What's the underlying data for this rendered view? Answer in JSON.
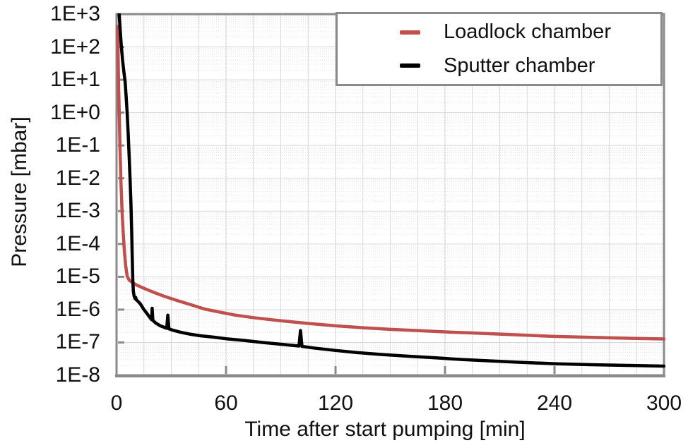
{
  "chart_data": {
    "type": "line",
    "title": "",
    "xlabel": "Time after start pumping [min]",
    "ylabel": "Pressure [mbar]",
    "x_axis": {
      "min": 0,
      "max": 300,
      "ticks": [
        0,
        60,
        120,
        180,
        240,
        300
      ],
      "minor_grid_step_min": 15,
      "dashed_grid_at": [
        60,
        120,
        180,
        240
      ]
    },
    "y_axis": {
      "scale": "log",
      "min": 1e-08,
      "max": 1000.0,
      "tick_labels": [
        "1E+3",
        "1E+2",
        "1E+1",
        "1E+0",
        "1E-1",
        "1E-2",
        "1E-3",
        "1E-4",
        "1E-5",
        "1E-6",
        "1E-7",
        "1E-8"
      ],
      "tick_exponents": [
        3,
        2,
        1,
        0,
        -1,
        -2,
        -3,
        -4,
        -5,
        -6,
        -7,
        -8
      ],
      "minor_gridlines": "log-subdecades-dotted"
    },
    "grid": {
      "major_color": "#d9d9d9",
      "minor_color": "#e4e4e4",
      "dashed_color": "#c4c4c4"
    },
    "axis_color": "#8a8a8a",
    "legend": {
      "position": "top-right",
      "entries": [
        {
          "label": "Loadlock chamber",
          "color": "#c0504d"
        },
        {
          "label": "Sputter chamber",
          "color": "#000000"
        }
      ]
    },
    "series": [
      {
        "name": "Loadlock chamber",
        "color": "#c0504d",
        "points": [
          [
            0.55,
            420.0
          ],
          [
            0.8,
            80.0
          ],
          [
            1.1,
            8.0
          ],
          [
            1.5,
            0.8
          ],
          [
            1.9,
            0.08
          ],
          [
            2.4,
            0.008
          ],
          [
            3.0,
            0.001
          ],
          [
            3.6,
            0.00025
          ],
          [
            4.3,
            6e-05
          ],
          [
            5.0,
            2.2e-05
          ],
          [
            5.8,
            1.05e-05
          ],
          [
            7,
            7.8e-06
          ],
          [
            9,
            6.5e-06
          ],
          [
            11,
            5.6e-06
          ],
          [
            14,
            4.7e-06
          ],
          [
            18,
            3.8e-06
          ],
          [
            22,
            3.1e-06
          ],
          [
            27,
            2.45e-06
          ],
          [
            33,
            1.9e-06
          ],
          [
            40,
            1.45e-06
          ],
          [
            48,
            1.05e-06
          ],
          [
            56,
            8.5e-07
          ],
          [
            65,
            6.8e-07
          ],
          [
            75,
            5.7e-07
          ],
          [
            85,
            4.9e-07
          ],
          [
            95,
            4.3e-07
          ],
          [
            105,
            3.8e-07
          ],
          [
            120,
            3.2e-07
          ],
          [
            135,
            2.8e-07
          ],
          [
            150,
            2.5e-07
          ],
          [
            165,
            2.3e-07
          ],
          [
            180,
            2.1e-07
          ],
          [
            195,
            1.95e-07
          ],
          [
            210,
            1.8e-07
          ],
          [
            225,
            1.65e-07
          ],
          [
            240,
            1.53e-07
          ],
          [
            255,
            1.45e-07
          ],
          [
            270,
            1.38e-07
          ],
          [
            285,
            1.32e-07
          ],
          [
            300,
            1.28e-07
          ]
        ]
      },
      {
        "name": "Sputter chamber",
        "color": "#000000",
        "points": [
          [
            1.35,
            1150.0
          ],
          [
            2.0,
            320.0
          ],
          [
            2.6,
            110.0
          ],
          [
            3.3,
            40.0
          ],
          [
            4.0,
            18.0
          ],
          [
            4.7,
            9.0
          ],
          [
            5.2,
            3.5
          ],
          [
            5.8,
            1.0
          ],
          [
            6.4,
            0.22
          ],
          [
            6.9,
            0.05
          ],
          [
            7.4,
            0.01
          ],
          [
            7.9,
            0.0016
          ],
          [
            8.3,
            0.00025
          ],
          [
            8.6,
            4e-05
          ],
          [
            8.9,
            8e-06
          ],
          [
            9.2,
            3.6e-06
          ],
          [
            9.6,
            2.6e-06
          ],
          [
            10.2,
            2.15e-06
          ],
          [
            10.5,
            2.35e-06
          ],
          [
            10.8,
            2e-06
          ],
          [
            11.5,
            1.85e-06
          ],
          [
            13,
            1.5e-06
          ],
          [
            15,
            1e-06
          ],
          [
            16.5,
            7.8e-07
          ],
          [
            18,
            6e-07
          ],
          [
            19.2,
            4.9e-07
          ],
          [
            19.5,
            1.1e-06
          ],
          [
            19.9,
            4.7e-07
          ],
          [
            21.5,
            3.9e-07
          ],
          [
            24,
            3.2e-07
          ],
          [
            27.5,
            2.7e-07
          ],
          [
            28.1,
            6.8e-07
          ],
          [
            28.7,
            2.6e-07
          ],
          [
            31,
            2.35e-07
          ],
          [
            35,
            2.05e-07
          ],
          [
            40,
            1.8e-07
          ],
          [
            46,
            1.6e-07
          ],
          [
            53,
            1.45e-07
          ],
          [
            60,
            1.3e-07
          ],
          [
            70,
            1.15e-07
          ],
          [
            80,
            1e-07
          ],
          [
            90,
            8.8e-08
          ],
          [
            100,
            7.8e-08
          ],
          [
            100.8,
            2.3e-07
          ],
          [
            101.6,
            7.6e-08
          ],
          [
            108,
            6.8e-08
          ],
          [
            120,
            5.7e-08
          ],
          [
            132,
            4.9e-08
          ],
          [
            145,
            4.3e-08
          ],
          [
            160,
            3.8e-08
          ],
          [
            175,
            3.4e-08
          ],
          [
            190,
            3e-08
          ],
          [
            205,
            2.75e-08
          ],
          [
            220,
            2.5e-08
          ],
          [
            240,
            2.25e-08
          ],
          [
            260,
            2.1e-08
          ],
          [
            280,
            2e-08
          ],
          [
            300,
            1.9e-08
          ]
        ]
      }
    ]
  }
}
